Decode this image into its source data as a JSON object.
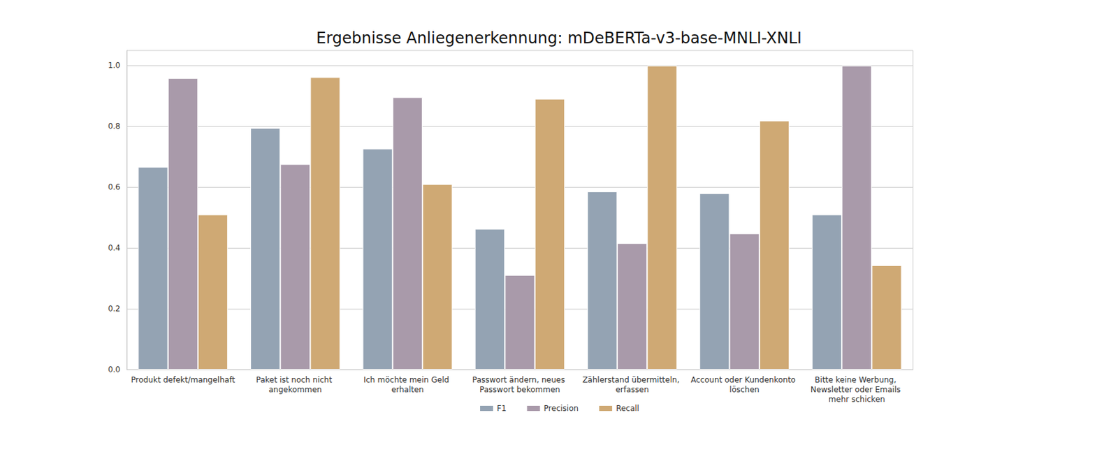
{
  "chart_data": {
    "type": "bar",
    "title": "Ergebnisse Anliegenerkennung: mDeBERTa-v3-base-MNLI-XNLI",
    "categories": [
      "Produkt defekt/mangelhaft",
      "Paket ist noch nicht angekommen",
      "Ich möchte mein Geld erhalten",
      "Passwort ändern, neues Passwort bekommen",
      "Zählerstand übermitteln, erfassen",
      "Account oder Kundenkonto löschen",
      "Bitte keine Werbung, Newsletter oder Emails mehr schicken"
    ],
    "series": [
      {
        "name": "F1",
        "color": "#94a3b3",
        "values": [
          0.667,
          0.795,
          0.727,
          0.463,
          0.586,
          0.58,
          0.51
        ]
      },
      {
        "name": "Precision",
        "color": "#a99aaa",
        "values": [
          0.959,
          0.676,
          0.896,
          0.311,
          0.416,
          0.448,
          1.0
        ]
      },
      {
        "name": "Recall",
        "color": "#cfa974",
        "values": [
          0.51,
          0.962,
          0.61,
          0.891,
          1.0,
          0.819,
          0.343
        ]
      }
    ],
    "ylim": [
      0,
      1.05
    ],
    "yticks": [
      {
        "value": 0,
        "label": "0.0"
      },
      0.2,
      0.4,
      0.6,
      0.8,
      {
        "value": 1,
        "label": "1.0"
      }
    ],
    "grid": true,
    "legend": "bottom"
  }
}
